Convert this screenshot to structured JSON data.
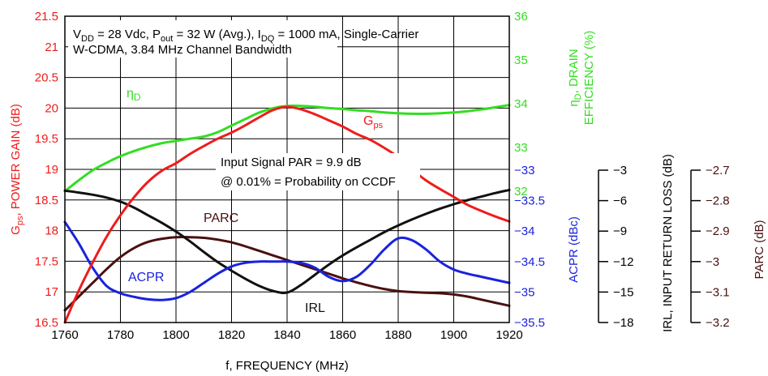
{
  "chart_data": {
    "type": "line",
    "xlabel": "f, FREQUENCY (MHz)",
    "xlim": [
      1760,
      1920
    ],
    "xticks": [
      1760,
      1780,
      1800,
      1820,
      1840,
      1860,
      1880,
      1900,
      1920
    ],
    "grid": true,
    "colors": {
      "gps": "#ee1c1c",
      "eta": "#33dd22",
      "acpr": "#1a22dd",
      "irl": "#111111",
      "parc": "#4a1010"
    },
    "axes": {
      "gps": {
        "label_main": "G",
        "label_sub": "ps",
        "label_rest": ", POWER GAIN (dB)",
        "lim": [
          16.5,
          21.5
        ],
        "ticks": [
          "16.5",
          "17",
          "17.5",
          "18",
          "18.5",
          "19",
          "19.5",
          "20",
          "20.5",
          "21",
          "21.5"
        ]
      },
      "eta": {
        "label_main": "η",
        "label_sub": "D",
        "label_rest": ", DRAIN",
        "label_line2": "EFFICIENCY (%)",
        "lim": [
          29,
          36
        ],
        "ticks": [
          "32",
          "33",
          "34",
          "35",
          "36"
        ]
      },
      "acpr": {
        "label": "ACPR (dBc)",
        "lim": [
          -35.5,
          -33
        ],
        "ticks": [
          "-33",
          "-33.5",
          "-34",
          "-34.5",
          "-35",
          "-35.5"
        ]
      },
      "irl": {
        "label": "IRL, INPUT RETURN LOSS (dB)",
        "lim": [
          -18,
          -3
        ],
        "ticks": [
          "-3",
          "-6",
          "-9",
          "-12",
          "-15",
          "-18"
        ]
      },
      "parc": {
        "label": "PARC (dB)",
        "lim": [
          -3.2,
          -2.7
        ],
        "ticks": [
          "-2.7",
          "-2.8",
          "-2.9",
          "-3",
          "-3.1",
          "-3.2"
        ]
      }
    },
    "conditions": {
      "l1_a": "V",
      "l1_a_sub": "DD",
      "l1_b": " = 28 Vdc, P",
      "l1_b_sub": "out",
      "l1_c": " = 32 W (Avg.), I",
      "l1_c_sub": "DQ",
      "l1_d": " = 1000 mA, Single-Carrier",
      "l2": "W-CDMA, 3.84 MHz Channel Bandwidth"
    },
    "signal_note": {
      "l1": "Input Signal PAR = 9.9 dB",
      "l2": "@ 0.01% = Probability on CCDF"
    },
    "series": [
      {
        "key": "gps",
        "axis": "gps",
        "label_main": "G",
        "label_sub": "ps",
        "x": [
          1760,
          1765,
          1770,
          1775,
          1780,
          1785,
          1790,
          1795,
          1800,
          1805,
          1810,
          1815,
          1820,
          1825,
          1830,
          1835,
          1840,
          1845,
          1850,
          1855,
          1860,
          1865,
          1870,
          1875,
          1880,
          1885,
          1890,
          1895,
          1900,
          1905,
          1910,
          1915,
          1920
        ],
        "y": [
          16.5,
          17.02,
          17.48,
          17.9,
          18.25,
          18.55,
          18.8,
          18.98,
          19.1,
          19.25,
          19.38,
          19.5,
          19.6,
          19.72,
          19.85,
          19.97,
          20.02,
          19.98,
          19.9,
          19.8,
          19.7,
          19.58,
          19.48,
          19.35,
          19.2,
          19.0,
          18.82,
          18.68,
          18.55,
          18.42,
          18.32,
          18.23,
          18.15
        ]
      },
      {
        "key": "eta",
        "axis": "eta",
        "label_main": "η",
        "label_sub": "D",
        "x": [
          1760,
          1765,
          1770,
          1775,
          1780,
          1785,
          1790,
          1795,
          1800,
          1805,
          1810,
          1815,
          1820,
          1825,
          1830,
          1835,
          1840,
          1845,
          1850,
          1855,
          1860,
          1865,
          1870,
          1875,
          1880,
          1885,
          1890,
          1895,
          1900,
          1905,
          1910,
          1915,
          1920
        ],
        "y": [
          32.0,
          32.25,
          32.48,
          32.65,
          32.8,
          32.92,
          33.02,
          33.1,
          33.15,
          33.2,
          33.25,
          33.35,
          33.5,
          33.65,
          33.8,
          33.9,
          33.95,
          33.95,
          33.93,
          33.9,
          33.88,
          33.85,
          33.83,
          33.8,
          33.78,
          33.77,
          33.77,
          33.78,
          33.8,
          33.83,
          33.87,
          33.92,
          33.97
        ]
      },
      {
        "key": "acpr",
        "axis": "acpr",
        "label": "ACPR",
        "x": [
          1760,
          1765,
          1770,
          1775,
          1780,
          1785,
          1790,
          1795,
          1800,
          1805,
          1810,
          1815,
          1820,
          1825,
          1830,
          1835,
          1840,
          1845,
          1850,
          1855,
          1860,
          1865,
          1870,
          1875,
          1880,
          1885,
          1890,
          1895,
          1900,
          1905,
          1910,
          1915,
          1920
        ],
        "y": [
          -33.85,
          -34.2,
          -34.6,
          -34.9,
          -35.02,
          -35.08,
          -35.12,
          -35.13,
          -35.1,
          -35.0,
          -34.85,
          -34.7,
          -34.58,
          -34.52,
          -34.5,
          -34.5,
          -34.5,
          -34.52,
          -34.6,
          -34.75,
          -34.82,
          -34.75,
          -34.55,
          -34.3,
          -34.12,
          -34.15,
          -34.3,
          -34.5,
          -34.63,
          -34.7,
          -34.75,
          -34.8,
          -34.85
        ]
      },
      {
        "key": "irl",
        "axis": "irl",
        "label": "IRL",
        "x": [
          1760,
          1765,
          1770,
          1775,
          1780,
          1785,
          1790,
          1795,
          1800,
          1805,
          1810,
          1815,
          1820,
          1825,
          1830,
          1835,
          1840,
          1845,
          1850,
          1855,
          1860,
          1865,
          1870,
          1875,
          1880,
          1885,
          1890,
          1895,
          1900,
          1905,
          1910,
          1915,
          1920
        ],
        "y": [
          -5.02,
          -5.2,
          -5.42,
          -5.7,
          -6.1,
          -6.7,
          -7.45,
          -8.2,
          -9.05,
          -10.0,
          -11.05,
          -12.05,
          -12.9,
          -13.7,
          -14.4,
          -14.9,
          -15.05,
          -14.3,
          -13.3,
          -12.3,
          -11.4,
          -10.6,
          -9.85,
          -9.1,
          -8.45,
          -7.85,
          -7.3,
          -6.8,
          -6.35,
          -5.95,
          -5.6,
          -5.25,
          -4.95
        ]
      },
      {
        "key": "parc",
        "axis": "parc",
        "label": "PARC",
        "x": [
          1760,
          1765,
          1770,
          1775,
          1780,
          1785,
          1790,
          1795,
          1800,
          1805,
          1810,
          1815,
          1820,
          1825,
          1830,
          1835,
          1840,
          1845,
          1850,
          1855,
          1860,
          1865,
          1870,
          1875,
          1880,
          1885,
          1890,
          1895,
          1900,
          1905,
          1910,
          1915,
          1920
        ],
        "y": [
          -3.16,
          -3.115,
          -3.07,
          -3.025,
          -2.985,
          -2.955,
          -2.935,
          -2.925,
          -2.92,
          -2.92,
          -2.922,
          -2.928,
          -2.937,
          -2.95,
          -2.965,
          -2.98,
          -2.995,
          -3.01,
          -3.025,
          -3.04,
          -3.055,
          -3.068,
          -3.08,
          -3.09,
          -3.097,
          -3.1,
          -3.102,
          -3.104,
          -3.108,
          -3.115,
          -3.125,
          -3.135,
          -3.145
        ]
      }
    ]
  }
}
